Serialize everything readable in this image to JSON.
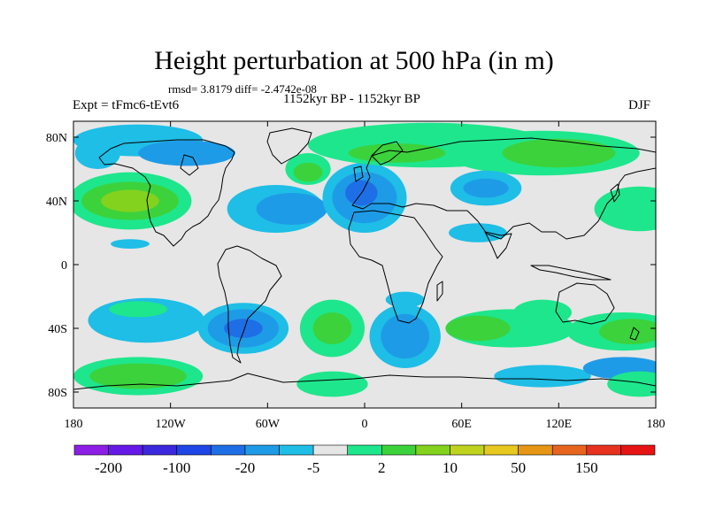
{
  "title": "Height perturbation at 500 hPa (in m)",
  "stats_line": "rmsd= 3.8179 diff= -2.4742e-08",
  "left_label": "Expt = tFmc6-tEvt6",
  "center_label": "1152kyr BP - 1152kyr BP",
  "right_label": "DJF",
  "lat_ticks": [
    {
      "label": "80N",
      "lat": 80
    },
    {
      "label": "40N",
      "lat": 40
    },
    {
      "label": "0",
      "lat": 0
    },
    {
      "label": "40S",
      "lat": -40
    },
    {
      "label": "80S",
      "lat": -80
    }
  ],
  "lon_ticks": [
    {
      "label": "180",
      "lon": -180
    },
    {
      "label": "120W",
      "lon": -120
    },
    {
      "label": "60W",
      "lon": -60
    },
    {
      "label": "0",
      "lon": 0
    },
    {
      "label": "60E",
      "lon": 60
    },
    {
      "label": "120E",
      "lon": 120
    },
    {
      "label": "180",
      "lon": 180
    }
  ],
  "colorbar": {
    "colors": [
      "#8c1ee6",
      "#6419e6",
      "#3c28dc",
      "#1e46e6",
      "#1e6ee6",
      "#1e9be6",
      "#1ebee6",
      "#e6e6e6",
      "#1ee68c",
      "#3cd23c",
      "#82d21e",
      "#bed21e",
      "#e6c81e",
      "#e69614",
      "#e6641e",
      "#e6321e",
      "#e61414"
    ],
    "labels": [
      {
        "text": "-200",
        "boundary": 1
      },
      {
        "text": "-100",
        "boundary": 3
      },
      {
        "text": "-20",
        "boundary": 5
      },
      {
        "text": "-5",
        "boundary": 7
      },
      {
        "text": "2",
        "boundary": 9
      },
      {
        "text": "10",
        "boundary": 11
      },
      {
        "text": "50",
        "boundary": 13
      },
      {
        "text": "150",
        "boundary": 15
      }
    ]
  },
  "map_data": {
    "lon_range": [
      -180,
      180
    ],
    "lat_range": [
      -90,
      90
    ],
    "background_color": "#e6e6e6",
    "anomalies": [
      {
        "lon": -145,
        "lat": 40,
        "rx": 38,
        "ry": 18,
        "color": "#1ee68c"
      },
      {
        "lon": -145,
        "lat": 40,
        "rx": 30,
        "ry": 12,
        "color": "#3cd23c"
      },
      {
        "lon": -145,
        "lat": 40,
        "rx": 18,
        "ry": 7,
        "color": "#82d21e"
      },
      {
        "lon": -140,
        "lat": 78,
        "rx": 40,
        "ry": 10,
        "color": "#1ebee6"
      },
      {
        "lon": -165,
        "lat": 70,
        "rx": 14,
        "ry": 10,
        "color": "#1ebee6"
      },
      {
        "lon": -110,
        "lat": 70,
        "rx": 30,
        "ry": 8,
        "color": "#1e9be6"
      },
      {
        "lon": -145,
        "lat": 13,
        "rx": 12,
        "ry": 3,
        "color": "#1ebee6"
      },
      {
        "lon": -55,
        "lat": 35,
        "rx": 30,
        "ry": 15,
        "color": "#1ebee6"
      },
      {
        "lon": -45,
        "lat": 35,
        "rx": 22,
        "ry": 10,
        "color": "#1e9be6"
      },
      {
        "lon": -35,
        "lat": 60,
        "rx": 14,
        "ry": 10,
        "color": "#1ee68c"
      },
      {
        "lon": -35,
        "lat": 58,
        "rx": 9,
        "ry": 6,
        "color": "#3cd23c"
      },
      {
        "lon": 0,
        "lat": 42,
        "rx": 26,
        "ry": 22,
        "color": "#1ebee6"
      },
      {
        "lon": 0,
        "lat": 42,
        "rx": 20,
        "ry": 16,
        "color": "#1e9be6"
      },
      {
        "lon": -2,
        "lat": 45,
        "rx": 10,
        "ry": 8,
        "color": "#1e6ee6"
      },
      {
        "lon": 40,
        "lat": 75,
        "rx": 75,
        "ry": 14,
        "color": "#1ee68c"
      },
      {
        "lon": 20,
        "lat": 70,
        "rx": 30,
        "ry": 6,
        "color": "#3cd23c"
      },
      {
        "lon": 110,
        "lat": 70,
        "rx": 60,
        "ry": 14,
        "color": "#1ee68c"
      },
      {
        "lon": 120,
        "lat": 70,
        "rx": 35,
        "ry": 9,
        "color": "#3cd23c"
      },
      {
        "lon": 75,
        "lat": 48,
        "rx": 22,
        "ry": 11,
        "color": "#1ebee6"
      },
      {
        "lon": 75,
        "lat": 48,
        "rx": 14,
        "ry": 6,
        "color": "#1e9be6"
      },
      {
        "lon": 70,
        "lat": 20,
        "rx": 18,
        "ry": 6,
        "color": "#1ebee6"
      },
      {
        "lon": 170,
        "lat": 35,
        "rx": 28,
        "ry": 14,
        "color": "#1ee68c"
      },
      {
        "lon": -135,
        "lat": -35,
        "rx": 36,
        "ry": 14,
        "color": "#1ebee6"
      },
      {
        "lon": -140,
        "lat": -28,
        "rx": 18,
        "ry": 5,
        "color": "#1ee68c"
      },
      {
        "lon": -75,
        "lat": -40,
        "rx": 28,
        "ry": 16,
        "color": "#1ebee6"
      },
      {
        "lon": -75,
        "lat": -40,
        "rx": 22,
        "ry": 12,
        "color": "#1e9be6"
      },
      {
        "lon": -75,
        "lat": -40,
        "rx": 12,
        "ry": 6,
        "color": "#1e6ee6"
      },
      {
        "lon": -20,
        "lat": -40,
        "rx": 20,
        "ry": 18,
        "color": "#1ee68c"
      },
      {
        "lon": -20,
        "lat": -40,
        "rx": 12,
        "ry": 10,
        "color": "#3cd23c"
      },
      {
        "lon": 25,
        "lat": -45,
        "rx": 22,
        "ry": 20,
        "color": "#1ebee6"
      },
      {
        "lon": 25,
        "lat": -45,
        "rx": 15,
        "ry": 14,
        "color": "#1e9be6"
      },
      {
        "lon": 25,
        "lat": -22,
        "rx": 12,
        "ry": 5,
        "color": "#1ebee6"
      },
      {
        "lon": 90,
        "lat": -40,
        "rx": 40,
        "ry": 12,
        "color": "#1ee68c"
      },
      {
        "lon": 70,
        "lat": -40,
        "rx": 20,
        "ry": 8,
        "color": "#3cd23c"
      },
      {
        "lon": 110,
        "lat": -30,
        "rx": 18,
        "ry": 8,
        "color": "#1ee68c"
      },
      {
        "lon": 160,
        "lat": -42,
        "rx": 35,
        "ry": 12,
        "color": "#1ee68c"
      },
      {
        "lon": 165,
        "lat": -42,
        "rx": 20,
        "ry": 8,
        "color": "#3cd23c"
      },
      {
        "lon": -140,
        "lat": -70,
        "rx": 40,
        "ry": 12,
        "color": "#1ee68c"
      },
      {
        "lon": -140,
        "lat": -70,
        "rx": 30,
        "ry": 8,
        "color": "#3cd23c"
      },
      {
        "lon": -20,
        "lat": -75,
        "rx": 22,
        "ry": 8,
        "color": "#1ee68c"
      },
      {
        "lon": 110,
        "lat": -70,
        "rx": 30,
        "ry": 7,
        "color": "#1ebee6"
      },
      {
        "lon": 160,
        "lat": -65,
        "rx": 25,
        "ry": 7,
        "color": "#1e9be6"
      },
      {
        "lon": 170,
        "lat": -75,
        "rx": 20,
        "ry": 8,
        "color": "#1ee68c"
      }
    ]
  }
}
